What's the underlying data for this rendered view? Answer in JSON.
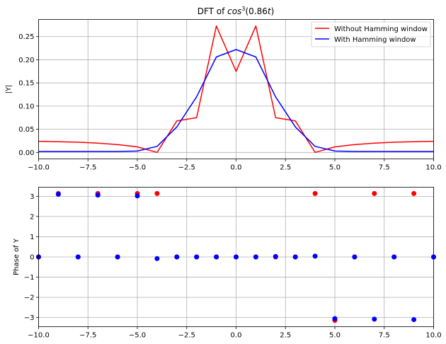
{
  "chart_data": [
    {
      "type": "line",
      "title_main": "DFT of ",
      "title_math": "cos",
      "title_sup": "3",
      "title_arg": "(0.86",
      "title_var": "t",
      "title_close": ")",
      "xlabel": "",
      "ylabel": "|Y|",
      "xlim": [
        -10,
        10
      ],
      "ylim": [
        -0.014,
        0.287
      ],
      "xticks": [
        "−10.0",
        "−7.5",
        "−5.0",
        "−2.5",
        "0.0",
        "2.5",
        "5.0",
        "7.5",
        "10.0"
      ],
      "xtick_values": [
        -10,
        -7.5,
        -5,
        -2.5,
        0,
        2.5,
        5,
        7.5,
        10
      ],
      "yticks": [
        "0.00",
        "0.05",
        "0.10",
        "0.15",
        "0.20",
        "0.25"
      ],
      "ytick_values": [
        0,
        0.05,
        0.1,
        0.15,
        0.2,
        0.25
      ],
      "grid": true,
      "legend_position": "top-right",
      "x": [
        -10,
        -9,
        -8,
        -7,
        -6,
        -5,
        -4,
        -3,
        -2,
        -1,
        0,
        1,
        2,
        3,
        4,
        5,
        6,
        7,
        8,
        9,
        10
      ],
      "series": [
        {
          "name": "Without Hamming window",
          "color": "#ff0000",
          "values": [
            0.024,
            0.023,
            0.022,
            0.02,
            0.017,
            0.012,
            0.0,
            0.068,
            0.075,
            0.273,
            0.175,
            0.273,
            0.075,
            0.068,
            0.0,
            0.012,
            0.017,
            0.02,
            0.022,
            0.023,
            0.024
          ]
        },
        {
          "name": "With Hamming window",
          "color": "#0000ff",
          "values": [
            0.002,
            0.002,
            0.002,
            0.002,
            0.002,
            0.003,
            0.013,
            0.055,
            0.12,
            0.206,
            0.222,
            0.206,
            0.12,
            0.055,
            0.013,
            0.003,
            0.002,
            0.002,
            0.002,
            0.002,
            0.002
          ]
        }
      ]
    },
    {
      "type": "scatter",
      "xlabel": "",
      "ylabel": "Phase of Y",
      "xlim": [
        -10,
        10
      ],
      "ylim": [
        -3.45,
        3.45
      ],
      "xticks": [
        "−10.0",
        "−7.5",
        "−5.0",
        "−2.5",
        "0.0",
        "2.5",
        "5.0",
        "7.5",
        "10.0"
      ],
      "xtick_values": [
        -10,
        -7.5,
        -5,
        -2.5,
        0,
        2.5,
        5,
        7.5,
        10
      ],
      "yticks": [
        "−3",
        "−2",
        "−1",
        "0",
        "1",
        "2",
        "3"
      ],
      "ytick_values": [
        -3,
        -2,
        -1,
        0,
        1,
        2,
        3
      ],
      "grid": true,
      "x": [
        -10,
        -9,
        -8,
        -7,
        -6,
        -5,
        -4,
        -3,
        -2,
        -1,
        0,
        1,
        2,
        3,
        4,
        5,
        6,
        7,
        8,
        9,
        10
      ],
      "series": [
        {
          "name": "Without Hamming window",
          "color": "#ff0000",
          "values": [
            0.0,
            3.14,
            0.0,
            3.14,
            0.0,
            3.14,
            3.14,
            0.0,
            0.0,
            0.0,
            0.0,
            0.0,
            0.0,
            0.0,
            3.14,
            -3.14,
            0.0,
            3.14,
            0.0,
            3.14,
            0.0
          ]
        },
        {
          "name": "With Hamming window",
          "color": "#0000ff",
          "values": [
            0.0,
            3.1,
            0.0,
            3.06,
            0.0,
            3.02,
            -0.08,
            0.0,
            0.0,
            0.0,
            0.0,
            0.0,
            0.02,
            0.0,
            0.04,
            -3.05,
            0.0,
            -3.08,
            0.0,
            -3.1,
            0.0
          ]
        }
      ]
    }
  ]
}
